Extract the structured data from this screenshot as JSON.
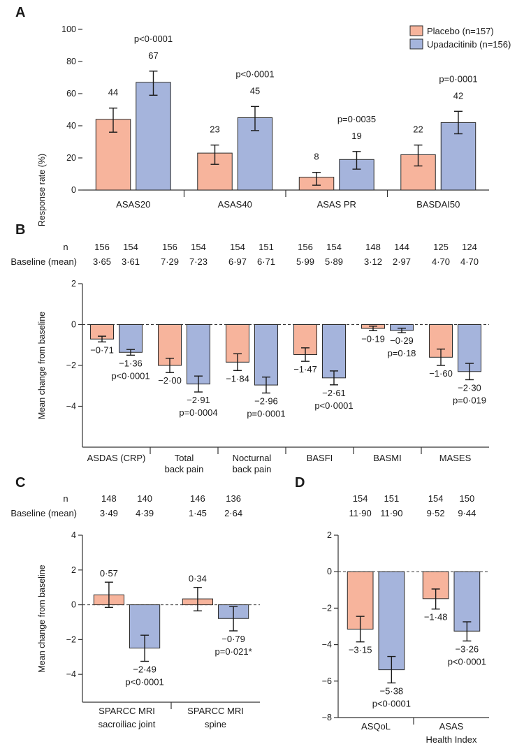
{
  "colors": {
    "placebo": "#f7b49c",
    "upadacitinib": "#a5b4dc"
  },
  "legend": {
    "placebo": "Placebo (n=157)",
    "upadacitinib": "Upadacitinib (n=156)"
  },
  "chart_data": [
    {
      "panel": "A",
      "type": "bar",
      "ylabel": "Response rate (%)",
      "ylim": [
        0,
        100
      ],
      "yticks": [
        0,
        20,
        40,
        60,
        80,
        100
      ],
      "categories": [
        "ASAS20",
        "ASAS40",
        "ASAS PR",
        "BASDAI50"
      ],
      "series": [
        {
          "name": "Placebo (n=157)",
          "values": [
            44,
            23,
            8,
            22
          ],
          "err_low": [
            36,
            16,
            3,
            15
          ],
          "err_high": [
            51,
            28,
            11,
            28
          ],
          "labels": [
            "44",
            "23",
            "8",
            "22"
          ]
        },
        {
          "name": "Upadacitinib (n=156)",
          "values": [
            67,
            45,
            19,
            42
          ],
          "err_low": [
            59,
            37,
            13,
            35
          ],
          "err_high": [
            74,
            52,
            24,
            49
          ],
          "labels": [
            "67",
            "45",
            "19",
            "42"
          ]
        }
      ],
      "pvalues": [
        "p<0·0001",
        "p<0·0001",
        "p=0·0035",
        "p=0·0001"
      ]
    },
    {
      "panel": "B",
      "type": "bar",
      "ylabel": "Mean change from baseline",
      "ylim": [
        -6,
        2
      ],
      "yticks": [
        2,
        0,
        -2,
        -4
      ],
      "n_label": "n",
      "baseline_label": "Baseline (mean)",
      "categories": [
        "ASDAS (CRP)",
        "Total|back pain",
        "Nocturnal|back pain",
        "BASFI",
        "BASMI",
        "MASES"
      ],
      "n": [
        [
          "156",
          "154"
        ],
        [
          "156",
          "154"
        ],
        [
          "154",
          "151"
        ],
        [
          "156",
          "154"
        ],
        [
          "148",
          "144"
        ],
        [
          "125",
          "124"
        ]
      ],
      "baseline": [
        [
          "3·65",
          "3·61"
        ],
        [
          "7·29",
          "7·23"
        ],
        [
          "6·97",
          "6·71"
        ],
        [
          "5·99",
          "5·89"
        ],
        [
          "3·12",
          "2·97"
        ],
        [
          "4·70",
          "4·70"
        ]
      ],
      "series": [
        {
          "name": "Placebo",
          "values": [
            -0.71,
            -2.0,
            -1.84,
            -1.47,
            -0.19,
            -1.6
          ],
          "err_low": [
            -0.85,
            -2.35,
            -2.25,
            -1.8,
            -0.3,
            -2.0
          ],
          "err_high": [
            -0.57,
            -1.65,
            -1.43,
            -1.14,
            -0.08,
            -1.2
          ],
          "labels": [
            "−0·71",
            "−2·00",
            "−1·84",
            "−1·47",
            "−0·19",
            "−1·60"
          ]
        },
        {
          "name": "Upadacitinib",
          "values": [
            -1.36,
            -2.91,
            -2.96,
            -2.61,
            -0.29,
            -2.3
          ],
          "err_low": [
            -1.5,
            -3.3,
            -3.35,
            -2.95,
            -0.4,
            -2.7
          ],
          "err_high": [
            -1.22,
            -2.52,
            -2.57,
            -2.27,
            -0.18,
            -1.9
          ],
          "labels": [
            "−1·36",
            "−2·91",
            "−2·96",
            "−2·61",
            "−0·29",
            "−2·30"
          ]
        }
      ],
      "pvalues": [
        "p<0·0001",
        "p=0·0004",
        "p=0·0001",
        "p<0·0001",
        "p=0·18",
        "p=0·019"
      ]
    },
    {
      "panel": "C",
      "type": "bar",
      "ylabel": "Mean change from baseline",
      "ylim": [
        -5.6,
        4
      ],
      "yticks": [
        4,
        2,
        0,
        -2,
        -4
      ],
      "n_label": "n",
      "baseline_label": "Baseline (mean)",
      "categories": [
        "SPARCC MRI|sacroiliac joint",
        "SPARCC MRI|spine"
      ],
      "n": [
        [
          "148",
          "140"
        ],
        [
          "146",
          "136"
        ]
      ],
      "baseline": [
        [
          "3·49",
          "4·39"
        ],
        [
          "1·45",
          "2·64"
        ]
      ],
      "series": [
        {
          "name": "Placebo",
          "values": [
            0.57,
            0.34
          ],
          "err_low": [
            -0.15,
            -0.35
          ],
          "err_high": [
            1.3,
            1.0
          ],
          "labels": [
            "0·57",
            "0·34"
          ]
        },
        {
          "name": "Upadacitinib",
          "values": [
            -2.49,
            -0.79
          ],
          "err_low": [
            -3.25,
            -1.5
          ],
          "err_high": [
            -1.75,
            -0.1
          ],
          "labels": [
            "−2·49",
            "−0·79"
          ]
        }
      ],
      "pvalues": [
        "p<0·0001",
        "p=0·021*"
      ]
    },
    {
      "panel": "D",
      "type": "bar",
      "ylabel": "",
      "ylim": [
        -8,
        2
      ],
      "yticks": [
        2,
        0,
        -2,
        -4,
        -6,
        -8
      ],
      "categories": [
        "ASQoL",
        "ASAS|Health Index"
      ],
      "n": [
        [
          "154",
          "151"
        ],
        [
          "154",
          "150"
        ]
      ],
      "baseline": [
        [
          "11·90",
          "11·90"
        ],
        [
          "9·52",
          "9·44"
        ]
      ],
      "series": [
        {
          "name": "Placebo",
          "values": [
            -3.15,
            -1.48
          ],
          "err_low": [
            -3.85,
            -2.05
          ],
          "err_high": [
            -2.45,
            -0.95
          ],
          "labels": [
            "−3·15",
            "−1·48"
          ]
        },
        {
          "name": "Upadacitinib",
          "values": [
            -5.38,
            -3.26
          ],
          "err_low": [
            -6.1,
            -3.8
          ],
          "err_high": [
            -4.65,
            -2.75
          ],
          "labels": [
            "−5·38",
            "−3·26"
          ]
        }
      ],
      "pvalues": [
        "p<0·0001",
        "p<0·0001"
      ]
    }
  ]
}
